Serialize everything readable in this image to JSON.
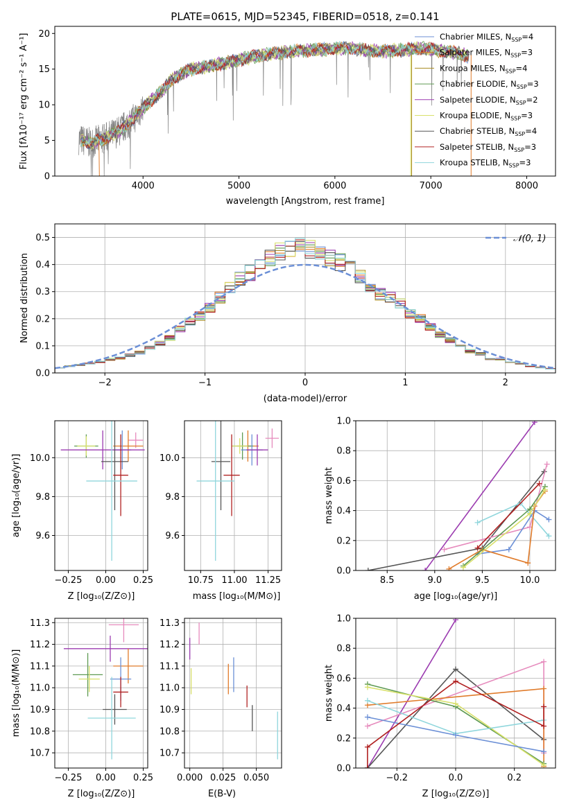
{
  "figure": {
    "title": "PLATE=0615, MJD=52345, FIBERID=0518, z=0.141"
  },
  "colors": {
    "chabrier_miles": "#6b8fd6",
    "salpeter_miles": "#e07b2a",
    "kroupa_miles": "#a88a1e",
    "chabrier_elodie": "#5e9a52",
    "salpeter_elodie": "#9b3bb0",
    "kroupa_elodie": "#d8e06a",
    "chabrier_stelib": "#555555",
    "salpeter_stelib": "#b02020",
    "kroupa_stelib": "#8fd6dc",
    "extra_pink": "#e68bbd",
    "normal_curve": "#6b8fd6",
    "data_spectrum": "#808080",
    "grid": "#b0b0b0"
  },
  "chart_data": [
    {
      "id": "spectrum",
      "type": "line",
      "title": "PLATE=0615, MJD=52345, FIBERID=0518, z=0.141",
      "xlabel": "wavelength [Angstrom, rest frame]",
      "ylabel": "Flux [fλ10⁻¹⁷ erg cm⁻² s⁻¹ A⁻¹]",
      "xlim": [
        3080,
        8300
      ],
      "ylim": [
        0,
        21
      ],
      "xticks": [
        "4000",
        "5000",
        "6000",
        "7000",
        "8000"
      ],
      "yticks": [
        "0",
        "5",
        "10",
        "15",
        "20"
      ],
      "grid": false,
      "legend_position": "top-right",
      "continuum": {
        "x": [
          3330,
          3450,
          3600,
          3750,
          3900,
          4000,
          4100,
          4200,
          4300,
          4500,
          4700,
          4900,
          5100,
          5300,
          5500,
          5700,
          5900,
          6100,
          6300,
          6500,
          6700,
          6900,
          7100,
          7300,
          7400
        ],
        "y": [
          5.2,
          4.6,
          5.3,
          6.3,
          8.0,
          9.6,
          10.8,
          11.9,
          13.6,
          15.0,
          15.4,
          16.0,
          16.6,
          17.1,
          17.4,
          17.6,
          17.8,
          18.0,
          17.7,
          17.5,
          17.7,
          17.9,
          17.6,
          17.2,
          16.8
        ]
      },
      "legend": [
        {
          "label": "Chabrier MILES, N_SSP=4",
          "text": "Chabrier MILES, N",
          "sub": "SSP",
          "suffix": "=4",
          "color_key": "chabrier_miles"
        },
        {
          "label": "Salpeter MILES, N_SSP=3",
          "text": "Salpeter MILES, N",
          "sub": "SSP",
          "suffix": "=3",
          "color_key": "salpeter_miles"
        },
        {
          "label": "Kroupa MILES, N_SSP=4",
          "text": "Kroupa MILES, N",
          "sub": "SSP",
          "suffix": "=4",
          "color_key": "kroupa_miles"
        },
        {
          "label": "Chabrier ELODIE, N_SSP=3",
          "text": "Chabrier ELODIE, N",
          "sub": "SSP",
          "suffix": "=3",
          "color_key": "chabrier_elodie"
        },
        {
          "label": "Salpeter ELODIE, N_SSP=2",
          "text": "Salpeter ELODIE, N",
          "sub": "SSP",
          "suffix": "=2",
          "color_key": "salpeter_elodie"
        },
        {
          "label": "Kroupa ELODIE, N_SSP=3",
          "text": "Kroupa ELODIE, N",
          "sub": "SSP",
          "suffix": "=3",
          "color_key": "kroupa_elodie"
        },
        {
          "label": "Chabrier STELIB, N_SSP=4",
          "text": "Chabrier STELIB, N",
          "sub": "SSP",
          "suffix": "=4",
          "color_key": "chabrier_stelib"
        },
        {
          "label": "Salpeter STELIB, N_SSP=3",
          "text": "Salpeter STELIB, N",
          "sub": "SSP",
          "suffix": "=3",
          "color_key": "salpeter_stelib"
        },
        {
          "label": "Kroupa STELIB, N_SSP=3",
          "text": "Kroupa STELIB, N",
          "sub": "SSP",
          "suffix": "=3",
          "color_key": "kroupa_stelib"
        }
      ]
    },
    {
      "id": "residuals",
      "type": "bar",
      "xlabel": "(data-model)/error",
      "ylabel": "Normed distribution",
      "xlim": [
        -2.5,
        2.5
      ],
      "ylim": [
        0,
        0.55
      ],
      "xticks": [
        "−2",
        "−1",
        "0",
        "1",
        "2"
      ],
      "yticks": [
        "0.0",
        "0.1",
        "0.2",
        "0.3",
        "0.4",
        "0.5"
      ],
      "grid": true,
      "legend_position": "top-right",
      "legend": [
        {
          "label": "𝒩(0, 1)",
          "color_key": "normal_curve"
        }
      ],
      "normal_curve": {
        "mean": 0,
        "sigma": 1
      },
      "bin_edges": [
        -2.5,
        -2.4,
        -2.3,
        -2.2,
        -2.1,
        -2.0,
        -1.9,
        -1.8,
        -1.7,
        -1.6,
        -1.5,
        -1.4,
        -1.3,
        -1.2,
        -1.1,
        -1.0,
        -0.9,
        -0.8,
        -0.7,
        -0.6,
        -0.5,
        -0.4,
        -0.3,
        -0.2,
        -0.1,
        0.0,
        0.1,
        0.2,
        0.3,
        0.4,
        0.5,
        0.6,
        0.7,
        0.8,
        0.9,
        1.0,
        1.1,
        1.2,
        1.3,
        1.4,
        1.5,
        1.6,
        1.7,
        1.8,
        1.9,
        2.0,
        2.1,
        2.2,
        2.3,
        2.4,
        2.5
      ],
      "histogram_base": [
        0.02,
        0.025,
        0.03,
        0.035,
        0.04,
        0.05,
        0.055,
        0.065,
        0.075,
        0.09,
        0.11,
        0.13,
        0.16,
        0.19,
        0.21,
        0.24,
        0.28,
        0.31,
        0.35,
        0.37,
        0.39,
        0.42,
        0.45,
        0.46,
        0.47,
        0.46,
        0.44,
        0.42,
        0.41,
        0.39,
        0.36,
        0.32,
        0.29,
        0.28,
        0.26,
        0.22,
        0.2,
        0.17,
        0.14,
        0.12,
        0.1,
        0.08,
        0.07,
        0.05,
        0.05,
        0.04,
        0.035,
        0.025,
        0.02,
        0.015
      ]
    },
    {
      "id": "age_vs_Z",
      "type": "scatter",
      "xlabel": "Z [log₁₀(Z/Z⊙)]",
      "ylabel": "age [log₁₀(age/yr)]",
      "xlim": [
        -0.34,
        0.28
      ],
      "ylim": [
        9.42,
        10.19
      ],
      "xticks": [
        "−0.25",
        "0.00",
        "0.25"
      ],
      "yticks": [
        "9.6",
        "9.8",
        "10.0"
      ],
      "grid": true,
      "points": [
        {
          "x": 0.2,
          "y": 10.09,
          "xerr": 0.05,
          "yerr": 0.04,
          "color_key": "extra_pink"
        },
        {
          "x": 0.15,
          "y": 10.06,
          "xerr": 0.1,
          "yerr": 0.08,
          "color_key": "salpeter_miles"
        },
        {
          "x": -0.13,
          "y": 10.06,
          "xerr": 0.08,
          "yerr": 0.06,
          "color_key": "chabrier_elodie"
        },
        {
          "x": -0.13,
          "y": 10.06,
          "xerr": 0.06,
          "yerr": 0.05,
          "color_key": "kroupa_elodie"
        },
        {
          "x": 0.11,
          "y": 10.04,
          "xerr": 0.06,
          "yerr": 0.1,
          "color_key": "chabrier_miles"
        },
        {
          "x": -0.02,
          "y": 10.04,
          "xerr": 0.28,
          "yerr": 0.1,
          "color_key": "salpeter_elodie"
        },
        {
          "x": 0.06,
          "y": 9.98,
          "xerr": 0.09,
          "yerr": 0.25,
          "color_key": "chabrier_stelib"
        },
        {
          "x": 0.1,
          "y": 9.91,
          "xerr": 0.05,
          "yerr": 0.21,
          "color_key": "salpeter_stelib"
        },
        {
          "x": 0.04,
          "y": 9.88,
          "xerr": 0.17,
          "yerr": 0.41,
          "color_key": "kroupa_stelib"
        }
      ]
    },
    {
      "id": "age_vs_mass",
      "type": "scatter",
      "xlabel": "mass [log₁₀(M/M⊙)]",
      "ylabel": "",
      "xlim": [
        10.63,
        11.35
      ],
      "ylim": [
        9.42,
        10.19
      ],
      "xticks": [
        "10.75",
        "11.00",
        "11.25"
      ],
      "yticks": [
        "9.6",
        "9.8",
        "10.0"
      ],
      "grid": true,
      "points": [
        {
          "x": 11.28,
          "y": 10.1,
          "xerr": 0.05,
          "yerr": 0.05,
          "color_key": "extra_pink"
        },
        {
          "x": 11.1,
          "y": 10.06,
          "xerr": 0.08,
          "yerr": 0.08,
          "color_key": "salpeter_miles"
        },
        {
          "x": 11.06,
          "y": 10.06,
          "xerr": 0.08,
          "yerr": 0.07,
          "color_key": "chabrier_elodie"
        },
        {
          "x": 11.04,
          "y": 10.06,
          "xerr": 0.06,
          "yerr": 0.04,
          "color_key": "kroupa_elodie"
        },
        {
          "x": 11.13,
          "y": 10.04,
          "xerr": 0.08,
          "yerr": 0.08,
          "color_key": "chabrier_miles"
        },
        {
          "x": 11.17,
          "y": 10.04,
          "xerr": 0.08,
          "yerr": 0.08,
          "color_key": "salpeter_elodie"
        },
        {
          "x": 10.9,
          "y": 9.98,
          "xerr": 0.07,
          "yerr": 0.25,
          "color_key": "chabrier_stelib"
        },
        {
          "x": 10.98,
          "y": 9.91,
          "xerr": 0.06,
          "yerr": 0.21,
          "color_key": "salpeter_stelib"
        },
        {
          "x": 10.86,
          "y": 9.88,
          "xerr": 0.14,
          "yerr": 0.41,
          "color_key": "kroupa_stelib"
        }
      ]
    },
    {
      "id": "weight_vs_age",
      "type": "line",
      "xlabel": "age [log₁₀(age/yr)]",
      "ylabel": "mass weight",
      "xlim": [
        8.17,
        10.27
      ],
      "ylim": [
        0,
        1.0
      ],
      "xticks": [
        "8.5",
        "9.0",
        "9.5",
        "10.0"
      ],
      "yticks": [
        "0.0",
        "0.2",
        "0.4",
        "0.6",
        "0.8",
        "1.0"
      ],
      "grid": true,
      "series": [
        {
          "color_key": "salpeter_elodie",
          "x": [
            8.9,
            10.05
          ],
          "y": [
            0.0,
            0.99
          ]
        },
        {
          "color_key": "chabrier_stelib",
          "x": [
            8.3,
            9.5,
            10.15
          ],
          "y": [
            0.0,
            0.15,
            0.66
          ]
        },
        {
          "color_key": "extra_pink",
          "x": [
            9.1,
            10.0,
            10.18
          ],
          "y": [
            0.14,
            0.29,
            0.71
          ]
        },
        {
          "color_key": "kroupa_stelib",
          "x": [
            9.45,
            9.9,
            10.2
          ],
          "y": [
            0.32,
            0.45,
            0.23
          ]
        },
        {
          "color_key": "chabrier_miles",
          "x": [
            9.45,
            9.78,
            10.05,
            10.2
          ],
          "y": [
            0.11,
            0.14,
            0.4,
            0.34
          ]
        },
        {
          "color_key": "salpeter_miles",
          "x": [
            9.15,
            9.5,
            9.98,
            10.05,
            10.16
          ],
          "y": [
            0.01,
            0.14,
            0.05,
            0.43,
            0.53
          ]
        },
        {
          "color_key": "chabrier_elodie",
          "x": [
            9.3,
            10.0,
            10.16
          ],
          "y": [
            0.03,
            0.41,
            0.56
          ]
        },
        {
          "color_key": "kroupa_elodie",
          "x": [
            9.3,
            10.0,
            10.16
          ],
          "y": [
            0.02,
            0.38,
            0.54
          ]
        },
        {
          "color_key": "salpeter_stelib",
          "x": [
            9.45,
            10.1
          ],
          "y": [
            0.15,
            0.58
          ]
        }
      ]
    },
    {
      "id": "mass_vs_Z",
      "type": "scatter",
      "xlabel": "Z [log₁₀(Z/Z⊙)]",
      "ylabel": "mass [log₁₀(M/M⊙)]",
      "xlim": [
        -0.34,
        0.28
      ],
      "ylim": [
        10.63,
        11.32
      ],
      "xticks": [
        "−0.25",
        "0.00",
        "0.25"
      ],
      "yticks": [
        "10.7",
        "10.8",
        "10.9",
        "11.0",
        "11.1",
        "11.2",
        "11.3"
      ],
      "grid": true,
      "points": [
        {
          "x": 0.12,
          "y": 11.29,
          "xerr": 0.1,
          "yerr": 0.08,
          "color_key": "extra_pink"
        },
        {
          "x": 0.03,
          "y": 11.18,
          "xerr": 0.31,
          "yerr": 0.06,
          "color_key": "salpeter_elodie"
        },
        {
          "x": 0.15,
          "y": 11.1,
          "xerr": 0.1,
          "yerr": 0.08,
          "color_key": "salpeter_miles"
        },
        {
          "x": -0.12,
          "y": 11.06,
          "xerr": 0.1,
          "yerr": 0.1,
          "color_key": "chabrier_elodie"
        },
        {
          "x": -0.11,
          "y": 11.04,
          "xerr": 0.07,
          "yerr": 0.06,
          "color_key": "kroupa_elodie"
        },
        {
          "x": 0.1,
          "y": 11.04,
          "xerr": 0.07,
          "yerr": 0.1,
          "color_key": "chabrier_miles"
        },
        {
          "x": 0.1,
          "y": 10.98,
          "xerr": 0.05,
          "yerr": 0.07,
          "color_key": "salpeter_stelib"
        },
        {
          "x": 0.06,
          "y": 10.9,
          "xerr": 0.08,
          "yerr": 0.07,
          "color_key": "chabrier_stelib"
        },
        {
          "x": 0.04,
          "y": 10.86,
          "xerr": 0.16,
          "yerr": 0.19,
          "color_key": "kroupa_stelib"
        }
      ]
    },
    {
      "id": "mass_vs_ebv",
      "type": "scatter",
      "xlabel": "E(B-V)",
      "ylabel": "",
      "xlim": [
        -0.004,
        0.069
      ],
      "ylim": [
        10.63,
        11.32
      ],
      "xticks": [
        "0.000",
        "0.025",
        "0.050"
      ],
      "yticks": [
        "10.7",
        "10.8",
        "10.9",
        "11.0",
        "11.1",
        "11.2",
        "11.3"
      ],
      "grid": true,
      "points": [
        {
          "x": 0.007,
          "y": 11.25,
          "xerr": 0,
          "yerr": 0.05,
          "color_key": "extra_pink"
        },
        {
          "x": 0.0,
          "y": 11.18,
          "xerr": 0,
          "yerr": 0.05,
          "color_key": "salpeter_elodie"
        },
        {
          "x": 0.001,
          "y": 11.03,
          "xerr": 0,
          "yerr": 0.06,
          "color_key": "kroupa_elodie"
        },
        {
          "x": 0.029,
          "y": 11.04,
          "xerr": 0,
          "yerr": 0.07,
          "color_key": "salpeter_miles"
        },
        {
          "x": 0.033,
          "y": 11.06,
          "xerr": 0,
          "yerr": 0.08,
          "color_key": "chabrier_miles"
        },
        {
          "x": 0.043,
          "y": 10.96,
          "xerr": 0,
          "yerr": 0.05,
          "color_key": "salpeter_stelib"
        },
        {
          "x": 0.047,
          "y": 10.86,
          "xerr": 0,
          "yerr": 0.06,
          "color_key": "chabrier_stelib"
        },
        {
          "x": 0.066,
          "y": 10.78,
          "xerr": 0,
          "yerr": 0.11,
          "color_key": "kroupa_stelib"
        }
      ]
    },
    {
      "id": "weight_vs_Z",
      "type": "line",
      "xlabel": "Z [log₁₀(Z/Z⊙)]",
      "ylabel": "mass weight",
      "xlim": [
        -0.34,
        0.34
      ],
      "ylim": [
        0,
        1.0
      ],
      "xticks": [
        "−0.2",
        "0.0",
        "0.2"
      ],
      "yticks": [
        "0.0",
        "0.2",
        "0.4",
        "0.6",
        "0.8",
        "1.0"
      ],
      "grid": true,
      "series": [
        {
          "color_key": "salpeter_elodie",
          "x": [
            -0.3,
            0.0
          ],
          "y": [
            0.0,
            0.99
          ]
        },
        {
          "color_key": "chabrier_stelib",
          "x": [
            -0.3,
            -0.3,
            0.0,
            0.3
          ],
          "y": [
            0.0,
            0.0,
            0.66,
            0.19
          ]
        },
        {
          "color_key": "extra_pink",
          "x": [
            -0.3,
            0.3,
            0.3
          ],
          "y": [
            0.28,
            0.71,
            0.1
          ]
        },
        {
          "color_key": "salpeter_miles",
          "x": [
            -0.3,
            0.3,
            0.3
          ],
          "y": [
            0.42,
            0.53,
            0.01
          ]
        },
        {
          "color_key": "chabrier_elodie",
          "x": [
            -0.3,
            0.0,
            0.3
          ],
          "y": [
            0.56,
            0.41,
            0.03
          ]
        },
        {
          "color_key": "kroupa_elodie",
          "x": [
            -0.3,
            0.0,
            0.3
          ],
          "y": [
            0.54,
            0.43,
            0.02
          ]
        },
        {
          "color_key": "kroupa_stelib",
          "x": [
            -0.3,
            0.0,
            0.3
          ],
          "y": [
            0.45,
            0.23,
            0.32
          ]
        },
        {
          "color_key": "chabrier_miles",
          "x": [
            -0.3,
            0.0,
            0.3
          ],
          "y": [
            0.34,
            0.22,
            0.11
          ]
        },
        {
          "color_key": "salpeter_stelib",
          "x": [
            -0.3,
            -0.3,
            0.0,
            0.3,
            0.3
          ],
          "y": [
            0.0,
            0.14,
            0.58,
            0.28,
            0.41
          ]
        }
      ]
    }
  ]
}
